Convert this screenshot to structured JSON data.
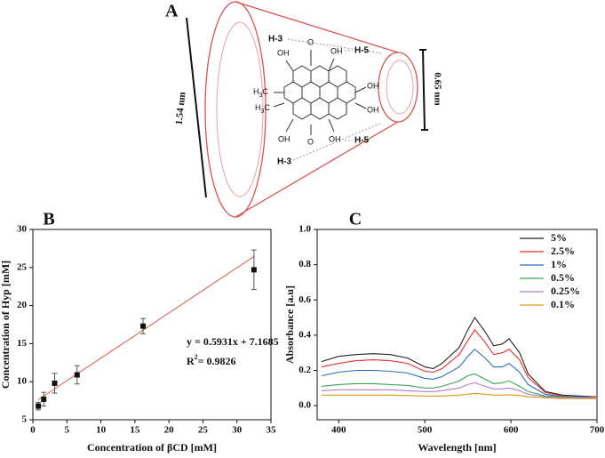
{
  "diagram": {
    "panel": "A",
    "length_large": "1.54 nm",
    "length_small": "0.65 nm",
    "protons": [
      "H-3",
      "H-5",
      "H-5",
      "H-3"
    ],
    "atoms": [
      "OH",
      "O",
      "OH",
      "OH",
      "OH",
      "OH",
      "O",
      "OH"
    ],
    "methyls": [
      {
        "base": "H",
        "sub": "3",
        "tail": "C"
      },
      {
        "base": "H",
        "sub": "3",
        "tail": "C"
      }
    ]
  },
  "chart_data": [
    {
      "type": "scatter",
      "panel": "B",
      "x_label": "Concentration of βCD [mM]",
      "y_label": "Concentration of Hyp [mM]",
      "x": [
        0.8,
        1.6,
        3.2,
        6.5,
        16.2,
        32.5
      ],
      "values": [
        6.8,
        7.7,
        9.8,
        10.9,
        17.3,
        24.7
      ],
      "errors": [
        0.5,
        0.9,
        1.3,
        1.2,
        1.0,
        2.6
      ],
      "color": "#111111",
      "fit": {
        "equation": "y = 0.5931x + 7.1685",
        "slope": 0.5931,
        "intercept": 7.1685,
        "color": "#e4574b",
        "r2": {
          "base": "R",
          "sup": "2",
          "text": "= 0.9826"
        }
      },
      "xlim": [
        0,
        35
      ],
      "xticks": [
        0,
        5,
        10,
        15,
        20,
        25,
        30,
        35
      ],
      "ylim": [
        5,
        30
      ],
      "yticks": [
        5,
        10,
        15,
        20,
        25,
        30
      ]
    },
    {
      "type": "line",
      "panel": "C",
      "x_label": "Wavelength [nm]",
      "y_label": "Absorbance [a.u]",
      "x": [
        380,
        400,
        420,
        440,
        460,
        480,
        500,
        510,
        520,
        540,
        550,
        558,
        570,
        580,
        590,
        598,
        610,
        620,
        640,
        660,
        680,
        700
      ],
      "series": [
        {
          "name": "5%",
          "color": "#222222",
          "values": [
            0.25,
            0.28,
            0.29,
            0.295,
            0.29,
            0.27,
            0.22,
            0.21,
            0.24,
            0.33,
            0.43,
            0.5,
            0.42,
            0.34,
            0.35,
            0.38,
            0.3,
            0.18,
            0.08,
            0.06,
            0.055,
            0.05
          ]
        },
        {
          "name": "2.5%",
          "color": "#e8302a",
          "values": [
            0.22,
            0.24,
            0.255,
            0.26,
            0.255,
            0.24,
            0.195,
            0.19,
            0.21,
            0.29,
            0.37,
            0.43,
            0.36,
            0.29,
            0.3,
            0.32,
            0.26,
            0.16,
            0.075,
            0.055,
            0.05,
            0.05
          ]
        },
        {
          "name": "1%",
          "color": "#2a6ebf",
          "values": [
            0.17,
            0.19,
            0.2,
            0.2,
            0.195,
            0.185,
            0.155,
            0.15,
            0.165,
            0.22,
            0.28,
            0.32,
            0.27,
            0.22,
            0.22,
            0.24,
            0.19,
            0.12,
            0.065,
            0.05,
            0.05,
            0.045
          ]
        },
        {
          "name": "0.5%",
          "color": "#3aa655",
          "values": [
            0.11,
            0.12,
            0.125,
            0.125,
            0.12,
            0.115,
            0.1,
            0.1,
            0.11,
            0.14,
            0.17,
            0.18,
            0.15,
            0.125,
            0.13,
            0.14,
            0.11,
            0.08,
            0.055,
            0.05,
            0.045,
            0.045
          ]
        },
        {
          "name": "0.25%",
          "color": "#b07cd0",
          "values": [
            0.085,
            0.09,
            0.09,
            0.09,
            0.09,
            0.085,
            0.08,
            0.08,
            0.085,
            0.1,
            0.12,
            0.13,
            0.11,
            0.095,
            0.095,
            0.1,
            0.085,
            0.065,
            0.05,
            0.045,
            0.045,
            0.045
          ]
        },
        {
          "name": "0.1%",
          "color": "#d99a1a",
          "values": [
            0.06,
            0.06,
            0.06,
            0.06,
            0.06,
            0.058,
            0.055,
            0.055,
            0.055,
            0.06,
            0.065,
            0.07,
            0.065,
            0.06,
            0.06,
            0.062,
            0.058,
            0.05,
            0.045,
            0.04,
            0.04,
            0.04
          ]
        }
      ],
      "xlim": [
        375,
        700
      ],
      "xticks": [
        400,
        500,
        600,
        700
      ],
      "ylim": [
        -0.08,
        1.0
      ],
      "yticks": [
        {
          "value": 0,
          "label": "0.0"
        },
        0.2,
        0.4,
        0.6,
        0.8,
        {
          "value": 1,
          "label": "1.0"
        }
      ]
    }
  ]
}
